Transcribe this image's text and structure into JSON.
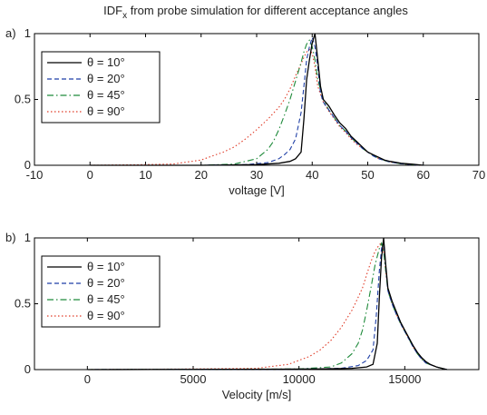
{
  "figure": {
    "title_main": "IDF",
    "title_sub": "x",
    "title_rest": " from probe simulation for different acceptance angles"
  },
  "chart_data": [
    {
      "type": "line",
      "panel_label": "a)",
      "xlabel": "voltage [V]",
      "ylabel": "",
      "xlim": [
        -10,
        70
      ],
      "ylim": [
        0,
        1
      ],
      "xticks": [
        -10,
        0,
        10,
        20,
        30,
        40,
        50,
        60,
        70
      ],
      "yticks": [
        0,
        0.5,
        1
      ],
      "grid": false,
      "legend": "top-left",
      "series": [
        {
          "name": "θ = 10°",
          "color": "#000000",
          "dash": "solid",
          "points": [
            [
              0,
              0
            ],
            [
              20,
              0
            ],
            [
              30,
              0.005
            ],
            [
              34,
              0.015
            ],
            [
              36,
              0.03
            ],
            [
              37,
              0.05
            ],
            [
              38,
              0.1
            ],
            [
              38.5,
              0.35
            ],
            [
              39,
              0.65
            ],
            [
              39.5,
              0.8
            ],
            [
              40,
              0.93
            ],
            [
              40.5,
              1.0
            ],
            [
              41,
              0.8
            ],
            [
              41.5,
              0.6
            ],
            [
              42,
              0.5
            ],
            [
              43,
              0.45
            ],
            [
              44,
              0.38
            ],
            [
              45,
              0.32
            ],
            [
              46,
              0.28
            ],
            [
              47,
              0.22
            ],
            [
              48,
              0.18
            ],
            [
              49,
              0.14
            ],
            [
              50,
              0.1
            ],
            [
              51,
              0.08
            ],
            [
              52,
              0.06
            ],
            [
              53,
              0.04
            ],
            [
              54,
              0.03
            ],
            [
              56,
              0.015
            ],
            [
              58,
              0.008
            ],
            [
              60,
              0
            ]
          ]
        },
        {
          "name": "θ = 20°",
          "color": "#1f3fa6",
          "dash": "dashed",
          "points": [
            [
              0,
              0
            ],
            [
              20,
              0
            ],
            [
              28,
              0.005
            ],
            [
              32,
              0.02
            ],
            [
              34,
              0.05
            ],
            [
              35,
              0.08
            ],
            [
              36,
              0.12
            ],
            [
              37,
              0.2
            ],
            [
              38,
              0.4
            ],
            [
              38.5,
              0.6
            ],
            [
              39,
              0.8
            ],
            [
              39.5,
              0.9
            ],
            [
              40,
              0.97
            ],
            [
              40.5,
              0.9
            ],
            [
              41,
              0.75
            ],
            [
              41.5,
              0.55
            ],
            [
              42,
              0.48
            ],
            [
              43,
              0.42
            ],
            [
              44,
              0.36
            ],
            [
              45,
              0.3
            ],
            [
              46,
              0.26
            ],
            [
              47,
              0.21
            ],
            [
              48,
              0.17
            ],
            [
              49,
              0.13
            ],
            [
              50,
              0.1
            ],
            [
              51,
              0.07
            ],
            [
              52,
              0.05
            ],
            [
              54,
              0.025
            ],
            [
              56,
              0.012
            ],
            [
              58,
              0.005
            ],
            [
              60,
              0
            ]
          ]
        },
        {
          "name": "θ = 45°",
          "color": "#1e8a3a",
          "dash": "dashdot",
          "points": [
            [
              0,
              0
            ],
            [
              20,
              0
            ],
            [
              26,
              0.01
            ],
            [
              30,
              0.05
            ],
            [
              32,
              0.12
            ],
            [
              33,
              0.18
            ],
            [
              34,
              0.27
            ],
            [
              35,
              0.38
            ],
            [
              36,
              0.5
            ],
            [
              37,
              0.64
            ],
            [
              38,
              0.78
            ],
            [
              38.5,
              0.86
            ],
            [
              39,
              0.92
            ],
            [
              39.5,
              0.95
            ],
            [
              40,
              0.9
            ],
            [
              40.5,
              0.8
            ],
            [
              41,
              0.65
            ],
            [
              42,
              0.5
            ],
            [
              43,
              0.42
            ],
            [
              44,
              0.36
            ],
            [
              45,
              0.3
            ],
            [
              46,
              0.26
            ],
            [
              47,
              0.21
            ],
            [
              48,
              0.17
            ],
            [
              49,
              0.13
            ],
            [
              50,
              0.1
            ],
            [
              52,
              0.05
            ],
            [
              54,
              0.025
            ],
            [
              56,
              0.012
            ],
            [
              58,
              0.005
            ],
            [
              60,
              0
            ]
          ]
        },
        {
          "name": "θ = 90°",
          "color": "#e03c28",
          "dash": "dotted",
          "points": [
            [
              0,
              0
            ],
            [
              10,
              0.005
            ],
            [
              15,
              0.01
            ],
            [
              20,
              0.04
            ],
            [
              22,
              0.07
            ],
            [
              24,
              0.1
            ],
            [
              26,
              0.14
            ],
            [
              28,
              0.2
            ],
            [
              30,
              0.27
            ],
            [
              32,
              0.35
            ],
            [
              34,
              0.44
            ],
            [
              35,
              0.5
            ],
            [
              36,
              0.58
            ],
            [
              37,
              0.68
            ],
            [
              38,
              0.77
            ],
            [
              38.5,
              0.82
            ],
            [
              39,
              0.86
            ],
            [
              39.5,
              0.88
            ],
            [
              40,
              0.85
            ],
            [
              40.5,
              0.75
            ],
            [
              41,
              0.6
            ],
            [
              42,
              0.48
            ],
            [
              43,
              0.41
            ],
            [
              44,
              0.35
            ],
            [
              45,
              0.29
            ],
            [
              46,
              0.25
            ],
            [
              47,
              0.2
            ],
            [
              48,
              0.16
            ],
            [
              49,
              0.13
            ],
            [
              50,
              0.1
            ],
            [
              52,
              0.05
            ],
            [
              54,
              0.025
            ],
            [
              56,
              0.012
            ],
            [
              58,
              0.005
            ],
            [
              60,
              0
            ]
          ]
        }
      ]
    },
    {
      "type": "line",
      "panel_label": "b)",
      "xlabel": "Velocity [m/s]",
      "ylabel": "",
      "xlim": [
        -2500,
        18500
      ],
      "ylim": [
        0,
        1
      ],
      "xticks": [
        0,
        5000,
        10000,
        15000
      ],
      "yticks": [
        0,
        0.5,
        1
      ],
      "grid": false,
      "legend": "top-left",
      "series": [
        {
          "name": "θ = 10°",
          "color": "#000000",
          "dash": "solid",
          "points": [
            [
              0,
              0
            ],
            [
              8000,
              0.003
            ],
            [
              11000,
              0.005
            ],
            [
              12500,
              0.01
            ],
            [
              13200,
              0.02
            ],
            [
              13500,
              0.04
            ],
            [
              13700,
              0.2
            ],
            [
              13800,
              0.55
            ],
            [
              13900,
              0.85
            ],
            [
              14000,
              1.0
            ],
            [
              14100,
              0.8
            ],
            [
              14200,
              0.62
            ],
            [
              14400,
              0.52
            ],
            [
              14600,
              0.44
            ],
            [
              14800,
              0.36
            ],
            [
              15000,
              0.3
            ],
            [
              15200,
              0.24
            ],
            [
              15400,
              0.18
            ],
            [
              15600,
              0.13
            ],
            [
              15800,
              0.09
            ],
            [
              16000,
              0.06
            ],
            [
              16200,
              0.04
            ],
            [
              16500,
              0.02
            ],
            [
              17000,
              0
            ]
          ]
        },
        {
          "name": "θ = 20°",
          "color": "#1f3fa6",
          "dash": "dashed",
          "points": [
            [
              0,
              0
            ],
            [
              10000,
              0.003
            ],
            [
              12000,
              0.01
            ],
            [
              12800,
              0.03
            ],
            [
              13200,
              0.07
            ],
            [
              13500,
              0.15
            ],
            [
              13650,
              0.4
            ],
            [
              13800,
              0.75
            ],
            [
              13900,
              0.92
            ],
            [
              14000,
              0.97
            ],
            [
              14100,
              0.78
            ],
            [
              14200,
              0.6
            ],
            [
              14400,
              0.5
            ],
            [
              14600,
              0.42
            ],
            [
              14800,
              0.35
            ],
            [
              15000,
              0.29
            ],
            [
              15200,
              0.23
            ],
            [
              15400,
              0.17
            ],
            [
              15600,
              0.12
            ],
            [
              15800,
              0.08
            ],
            [
              16000,
              0.05
            ],
            [
              16500,
              0.02
            ],
            [
              17000,
              0
            ]
          ]
        },
        {
          "name": "θ = 45°",
          "color": "#1e8a3a",
          "dash": "dashdot",
          "points": [
            [
              0,
              0
            ],
            [
              10000,
              0.005
            ],
            [
              11500,
              0.02
            ],
            [
              12000,
              0.05
            ],
            [
              12500,
              0.12
            ],
            [
              12800,
              0.2
            ],
            [
              13000,
              0.3
            ],
            [
              13200,
              0.45
            ],
            [
              13400,
              0.62
            ],
            [
              13600,
              0.8
            ],
            [
              13800,
              0.92
            ],
            [
              13900,
              0.96
            ],
            [
              14000,
              0.9
            ],
            [
              14100,
              0.75
            ],
            [
              14200,
              0.6
            ],
            [
              14400,
              0.5
            ],
            [
              14600,
              0.42
            ],
            [
              14800,
              0.35
            ],
            [
              15000,
              0.29
            ],
            [
              15200,
              0.23
            ],
            [
              15400,
              0.17
            ],
            [
              15600,
              0.12
            ],
            [
              15800,
              0.08
            ],
            [
              16000,
              0.05
            ],
            [
              16500,
              0.02
            ],
            [
              17000,
              0
            ]
          ]
        },
        {
          "name": "θ = 90°",
          "color": "#e03c28",
          "dash": "dotted",
          "points": [
            [
              0,
              0
            ],
            [
              5000,
              0.005
            ],
            [
              8000,
              0.01
            ],
            [
              9500,
              0.04
            ],
            [
              10500,
              0.1
            ],
            [
              11000,
              0.15
            ],
            [
              11500,
              0.22
            ],
            [
              12000,
              0.32
            ],
            [
              12500,
              0.45
            ],
            [
              12800,
              0.55
            ],
            [
              13000,
              0.62
            ],
            [
              13200,
              0.72
            ],
            [
              13400,
              0.82
            ],
            [
              13600,
              0.9
            ],
            [
              13800,
              0.95
            ],
            [
              13900,
              0.96
            ],
            [
              14000,
              0.9
            ],
            [
              14100,
              0.75
            ],
            [
              14200,
              0.6
            ],
            [
              14400,
              0.5
            ],
            [
              14600,
              0.42
            ],
            [
              14800,
              0.35
            ],
            [
              15000,
              0.29
            ],
            [
              15200,
              0.23
            ],
            [
              15400,
              0.17
            ],
            [
              15600,
              0.12
            ],
            [
              15800,
              0.08
            ],
            [
              16000,
              0.05
            ],
            [
              16500,
              0.02
            ],
            [
              17000,
              0
            ]
          ]
        }
      ]
    }
  ]
}
